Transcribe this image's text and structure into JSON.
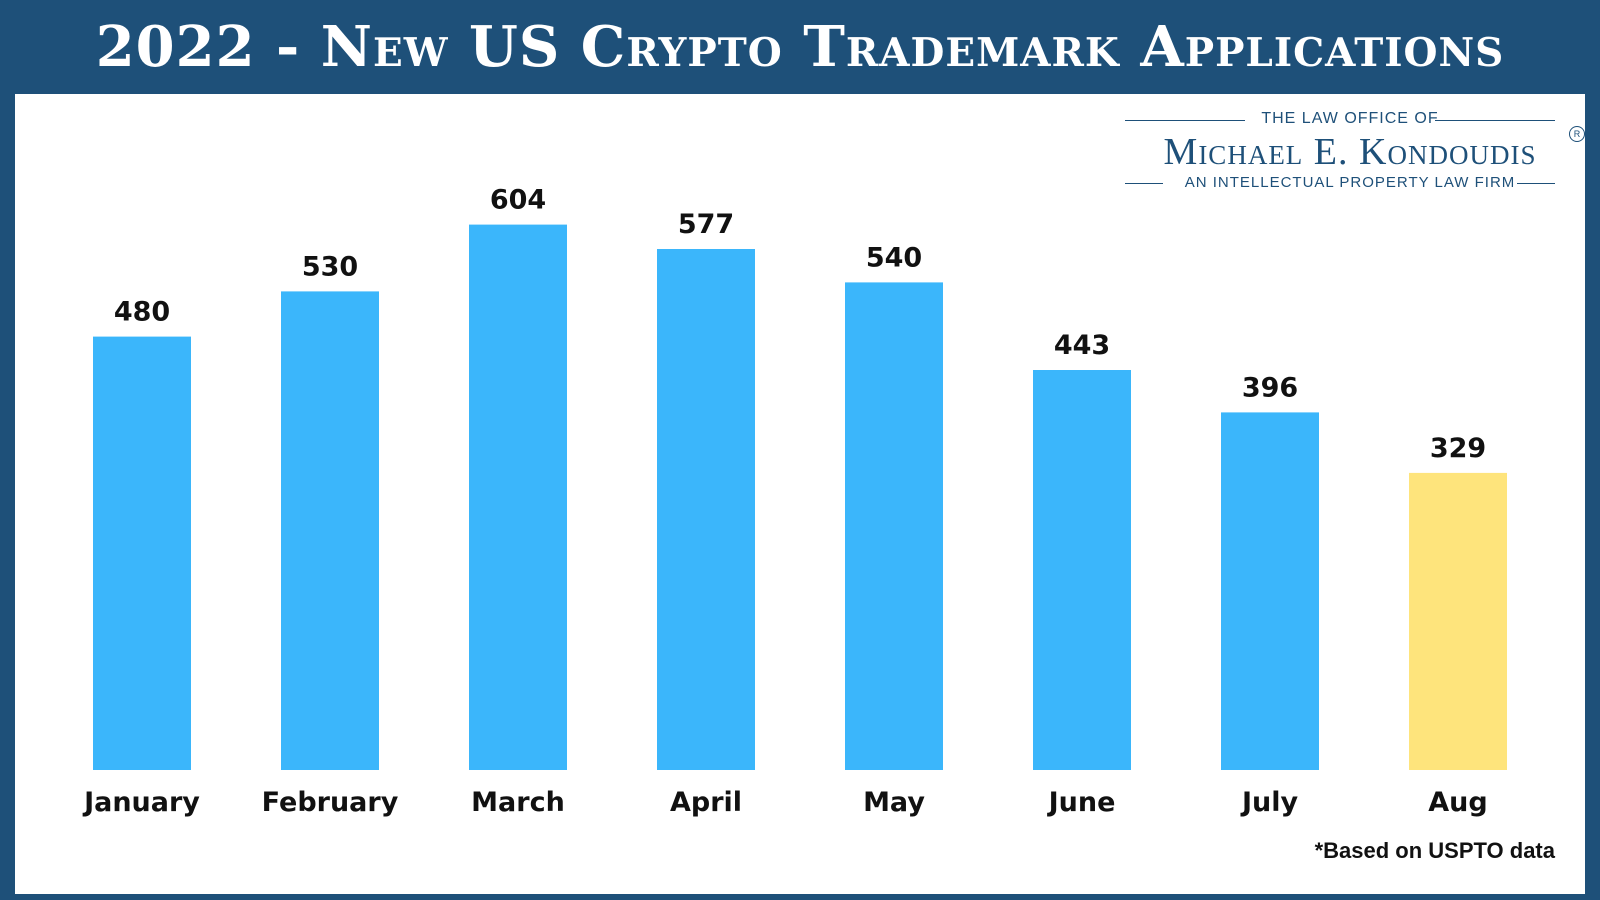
{
  "title": "2022 - New US Crypto Trademark Applications",
  "logo": {
    "top_line": "THE LAW OFFICE OF",
    "name": "Michael E. Kondoudis",
    "tagline": "AN INTELLECTUAL PROPERTY LAW FIRM",
    "registered_mark": "R"
  },
  "footnote": "*Based on USPTO data",
  "colors": {
    "bar": "#3bb6fb",
    "highlight_bar": "#fee47c",
    "header_background": "#1e5079"
  },
  "chart_data": {
    "type": "bar",
    "categories": [
      "January",
      "February",
      "March",
      "April",
      "May",
      "June",
      "July",
      "Aug"
    ],
    "values": [
      480,
      530,
      604,
      577,
      540,
      443,
      396,
      329
    ],
    "highlight_categories": [
      "Aug"
    ],
    "data_labels": true,
    "grid": false,
    "xlabel": "",
    "ylabel": ""
  }
}
